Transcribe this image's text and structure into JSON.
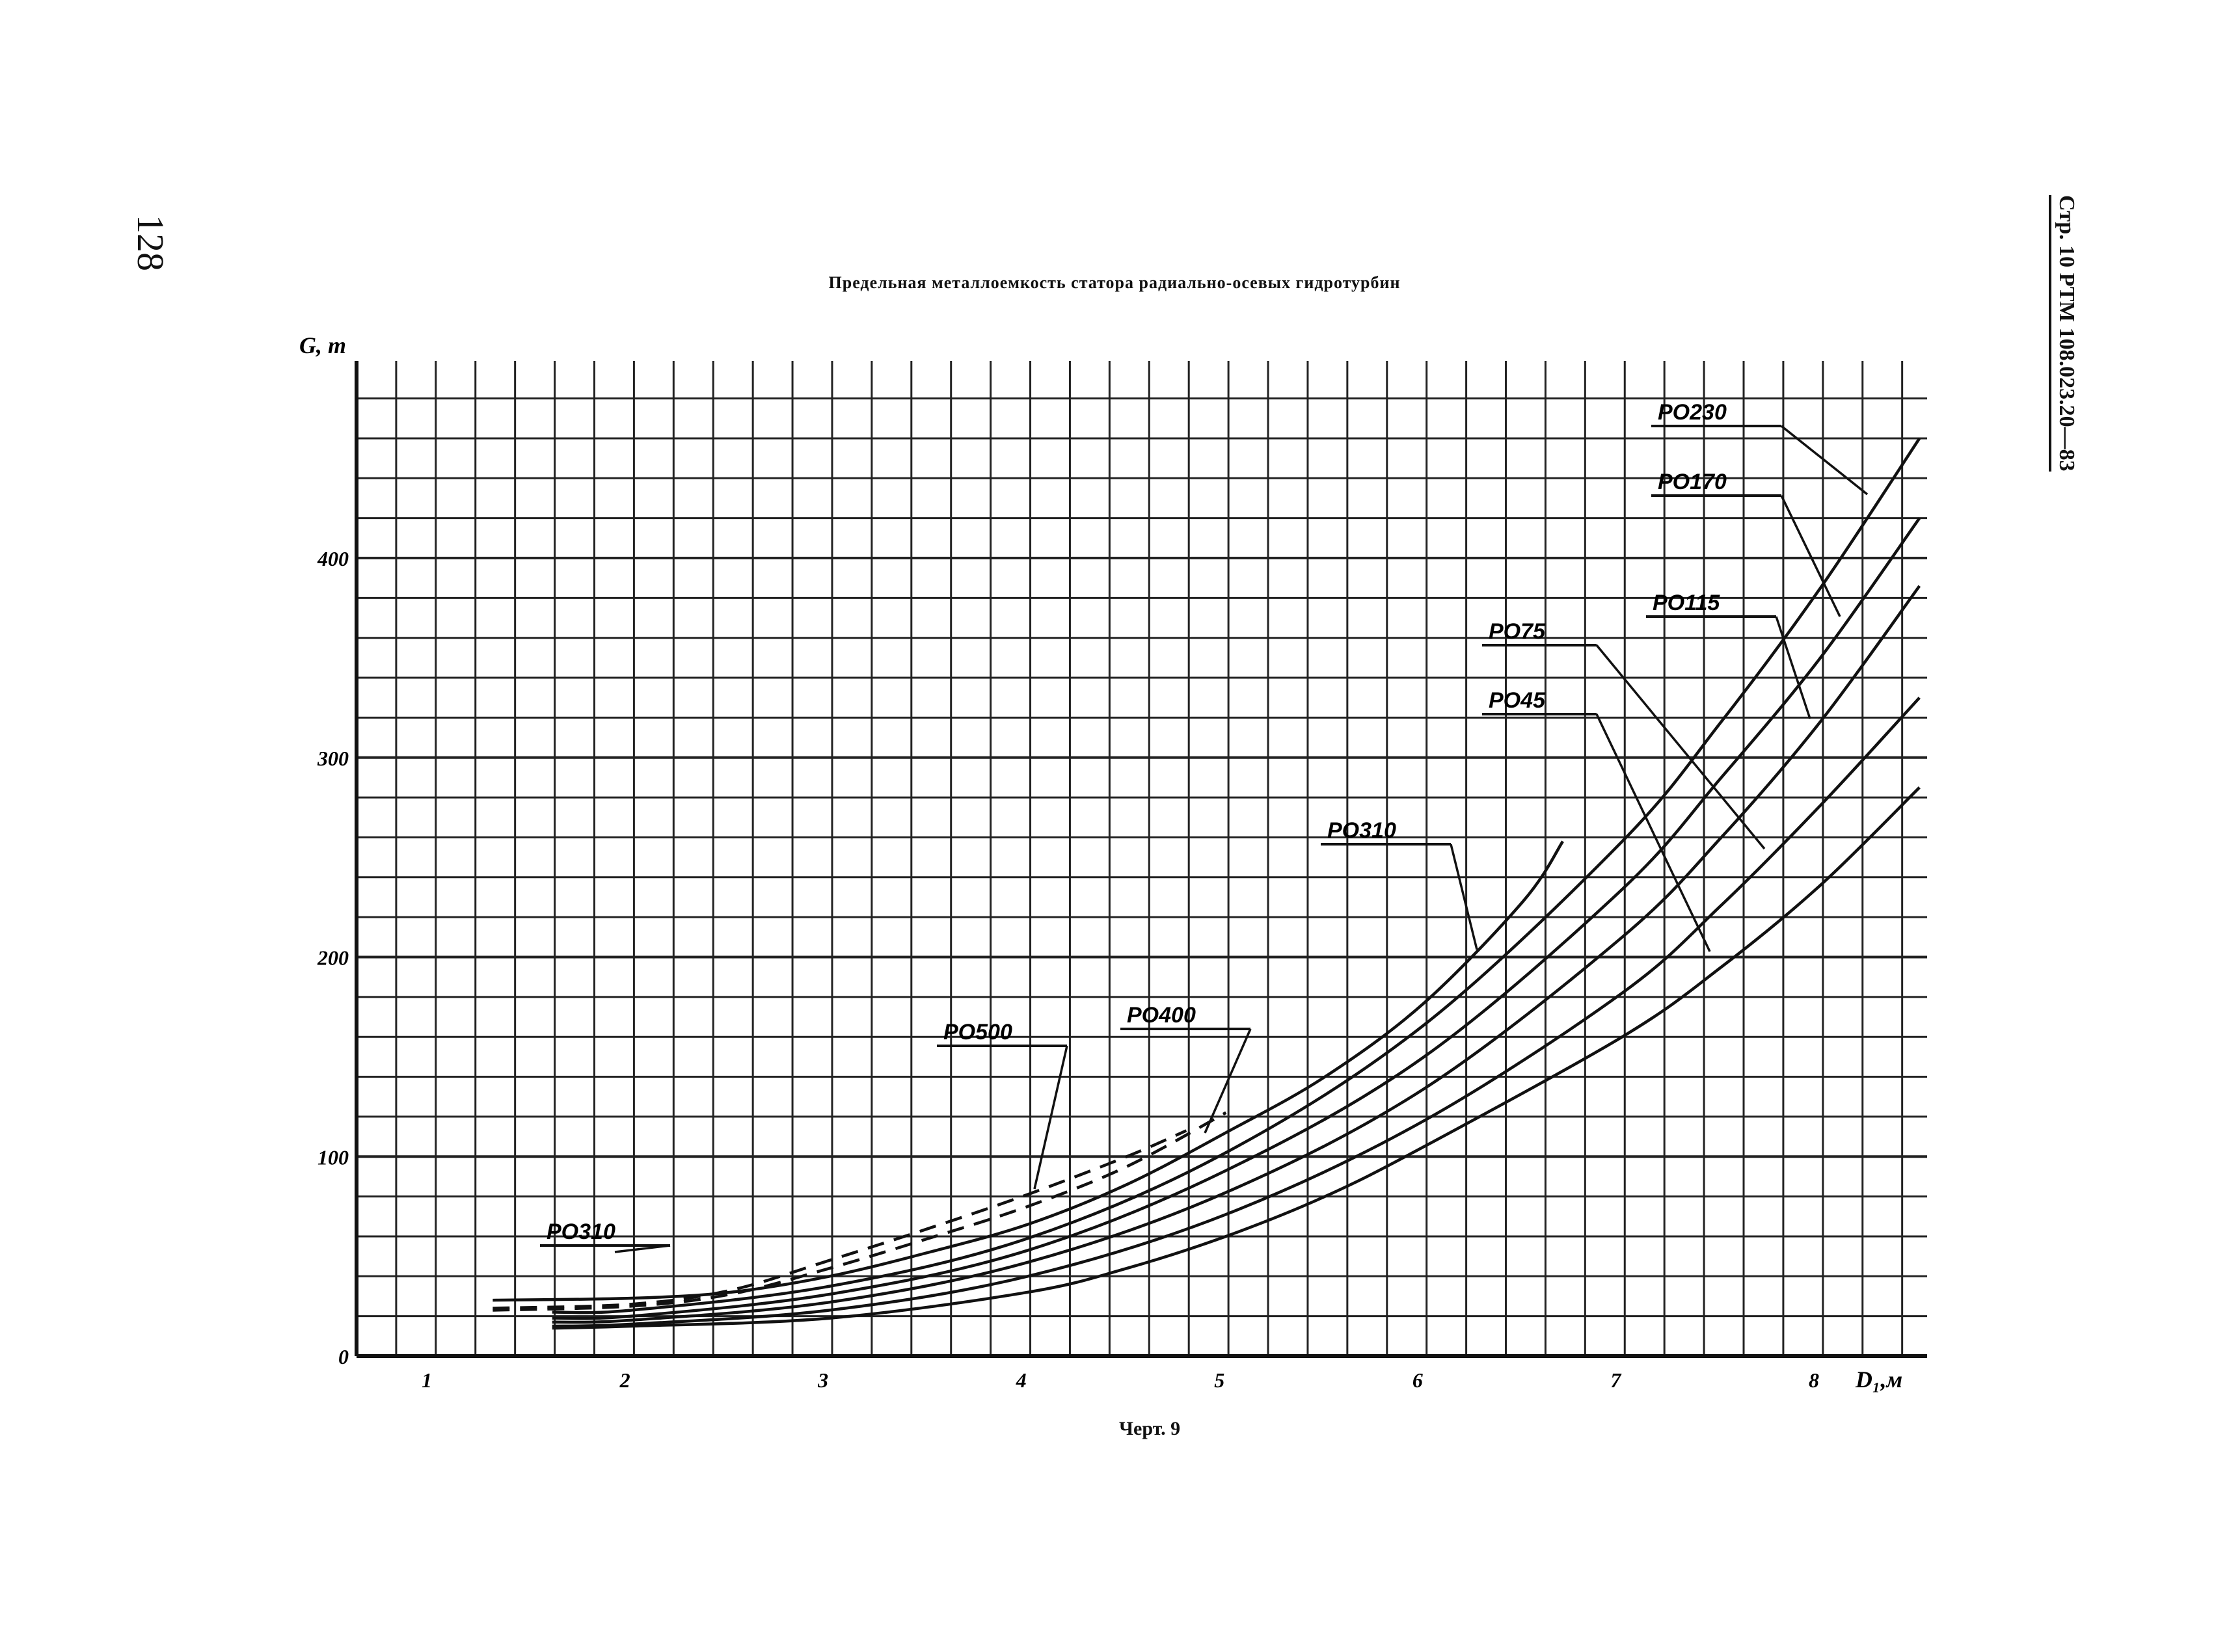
{
  "page_number": "128",
  "side_reference": "Стр. 10 РТМ 108.023.20—83",
  "caption": "Черт. 9",
  "chart_data": {
    "type": "line",
    "title": "Предельная металлоемкость статора радиально-осевых гидротурбин",
    "xlabel": "D₁,м",
    "ylabel": "G, т",
    "xlim": [
      0.6,
      8.55
    ],
    "ylim": [
      0,
      500
    ],
    "x_ticks": [
      "1",
      "2",
      "3",
      "4",
      "5",
      "6",
      "7",
      "8"
    ],
    "y_ticks": [
      "0",
      "100",
      "200",
      "300",
      "400"
    ],
    "grid": true,
    "series": [
      {
        "name": "РО500",
        "dashed": true,
        "x": [
          1.3,
          2.0,
          2.5,
          3.0,
          3.5,
          4.0,
          4.5,
          4.8
        ],
        "y": [
          24,
          26,
          33,
          48,
          64,
          81,
          100,
          113
        ]
      },
      {
        "name": "РО400",
        "dashed": true,
        "x": [
          1.3,
          2.0,
          2.5,
          3.0,
          3.5,
          4.0,
          4.5,
          5.0
        ],
        "y": [
          23,
          25,
          31,
          44,
          59,
          75,
          95,
          122
        ]
      },
      {
        "name": "РО310",
        "dashed": false,
        "x": [
          1.3,
          2.0,
          2.5,
          3.0,
          3.5,
          4.0,
          4.5,
          5.0,
          5.5,
          6.0,
          6.5,
          6.7
        ],
        "y": [
          28,
          29,
          32,
          40,
          52,
          66,
          86,
          112,
          140,
          177,
          228,
          258
        ]
      },
      {
        "name": "РО230",
        "dashed": false,
        "x": [
          1.6,
          2.0,
          3.0,
          4.0,
          5.0,
          6.0,
          7.0,
          7.5,
          8.0,
          8.5
        ],
        "y": [
          22,
          23,
          35,
          59,
          102,
          166,
          258,
          318,
          385,
          460
        ]
      },
      {
        "name": "РО170",
        "dashed": false,
        "x": [
          1.6,
          2.0,
          3.0,
          4.0,
          5.0,
          6.0,
          7.0,
          7.5,
          8.0,
          8.5
        ],
        "y": [
          19,
          20,
          31,
          53,
          93,
          150,
          234,
          290,
          350,
          420
        ]
      },
      {
        "name": "РО115",
        "dashed": false,
        "x": [
          1.6,
          2.0,
          3.0,
          4.0,
          5.0,
          6.0,
          7.0,
          7.5,
          8.0,
          8.5
        ],
        "y": [
          17,
          18,
          27,
          47,
          82,
          134,
          210,
          260,
          318,
          386
        ]
      },
      {
        "name": "РО75",
        "dashed": false,
        "x": [
          1.6,
          2.0,
          3.0,
          4.0,
          5.0,
          6.0,
          7.0,
          7.5,
          8.0,
          8.5
        ],
        "y": [
          15,
          16,
          23,
          40,
          71,
          118,
          182,
          226,
          276,
          330
        ]
      },
      {
        "name": "РО45",
        "dashed": false,
        "x": [
          1.6,
          2.0,
          3.0,
          4.0,
          4.5,
          5.0,
          5.5,
          6.0,
          7.0,
          7.5,
          8.0,
          8.5
        ],
        "y": [
          14,
          15,
          19,
          32,
          44,
          60,
          80,
          105,
          160,
          195,
          236,
          285
        ]
      }
    ],
    "labels": [
      {
        "text": "РО230",
        "series": "РО230"
      },
      {
        "text": "РО170",
        "series": "РО170"
      },
      {
        "text": "РО115",
        "series": "РО115"
      },
      {
        "text": "РО75",
        "series": "РО75"
      },
      {
        "text": "РО45",
        "series": "РО45"
      },
      {
        "text": "РО310",
        "series": "РО310"
      },
      {
        "text": "РО500",
        "series": "РО500"
      },
      {
        "text": "РО400",
        "series": "РО400"
      },
      {
        "text": "РО310",
        "series": "РО310"
      }
    ]
  }
}
